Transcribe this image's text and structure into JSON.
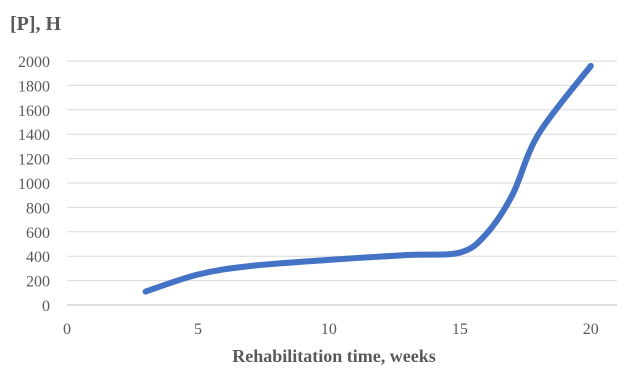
{
  "chart_data": {
    "type": "line",
    "title": "",
    "xlabel": "Rehabilitation time, weeks",
    "ylabel": "[P], H",
    "xlim": [
      0,
      21
    ],
    "ylim": [
      0,
      2000
    ],
    "x_ticks": [
      0,
      5,
      10,
      15,
      20
    ],
    "y_ticks": [
      0,
      200,
      400,
      600,
      800,
      1000,
      1200,
      1400,
      1600,
      1800,
      2000
    ],
    "grid": true,
    "legend": "none",
    "series": [
      {
        "color": "#4472C4",
        "x": [
          3,
          5,
          7,
          10,
          13,
          15,
          16,
          17,
          18,
          20
        ],
        "y": [
          110,
          250,
          320,
          370,
          410,
          430,
          580,
          900,
          1400,
          1960
        ]
      }
    ]
  }
}
